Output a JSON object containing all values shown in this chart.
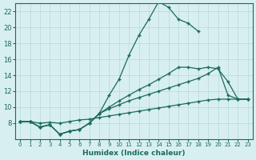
{
  "xlabel": "Humidex (Indice chaleur)",
  "ylabel": "",
  "xlim": [
    -0.5,
    23.5
  ],
  "ylim": [
    6,
    23
  ],
  "xticks": [
    0,
    1,
    2,
    3,
    4,
    5,
    6,
    7,
    8,
    9,
    10,
    11,
    12,
    13,
    14,
    15,
    16,
    17,
    18,
    19,
    20,
    21,
    22,
    23
  ],
  "yticks": [
    8,
    10,
    12,
    14,
    16,
    18,
    20,
    22
  ],
  "bg_color": "#d8eff0",
  "line_color": "#1a6b5a",
  "grid_color": "#b8d8d8",
  "line1_x": [
    0,
    1,
    2,
    3,
    4,
    5,
    6,
    7,
    8,
    9,
    10,
    11,
    12,
    13,
    14,
    15,
    16,
    17,
    18
  ],
  "line1_y": [
    8.2,
    8.2,
    7.5,
    7.8,
    6.6,
    7.0,
    7.2,
    8.0,
    9.2,
    11.5,
    13.5,
    16.5,
    19.0,
    21.0,
    23.2,
    22.5,
    21.0,
    20.5,
    19.5
  ],
  "line2_x": [
    0,
    1,
    2,
    3,
    4,
    5,
    6,
    7,
    8,
    9,
    10,
    11,
    12,
    13,
    14,
    15,
    16,
    17,
    18,
    19,
    20,
    21,
    22,
    23
  ],
  "line2_y": [
    8.2,
    8.2,
    7.5,
    7.8,
    6.6,
    7.0,
    7.2,
    8.0,
    9.2,
    10.0,
    10.8,
    11.5,
    12.2,
    12.8,
    13.5,
    14.2,
    15.0,
    15.0,
    14.8,
    15.0,
    14.8,
    13.2,
    11.0,
    11.0
  ],
  "line3_x": [
    0,
    1,
    2,
    3,
    4,
    5,
    6,
    7,
    8,
    9,
    10,
    11,
    12,
    13,
    14,
    15,
    16,
    17,
    18,
    19,
    20,
    21,
    22,
    23
  ],
  "line3_y": [
    8.2,
    8.2,
    7.5,
    7.8,
    6.6,
    7.0,
    7.2,
    8.0,
    9.2,
    9.8,
    10.3,
    10.8,
    11.2,
    11.6,
    12.0,
    12.4,
    12.8,
    13.2,
    13.6,
    14.2,
    15.0,
    11.5,
    11.0,
    11.0
  ],
  "line4_x": [
    0,
    1,
    2,
    3,
    4,
    5,
    6,
    7,
    8,
    9,
    10,
    11,
    12,
    13,
    14,
    15,
    16,
    17,
    18,
    19,
    20,
    21,
    22,
    23
  ],
  "line4_y": [
    8.2,
    8.2,
    8.0,
    8.1,
    8.0,
    8.2,
    8.4,
    8.5,
    8.7,
    8.9,
    9.1,
    9.3,
    9.5,
    9.7,
    9.9,
    10.1,
    10.3,
    10.5,
    10.7,
    10.9,
    11.0,
    11.0,
    11.0,
    11.0
  ]
}
